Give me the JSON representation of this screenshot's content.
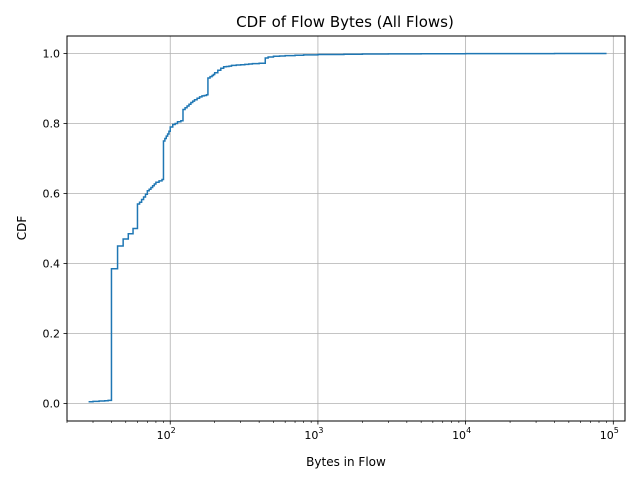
{
  "chart_data": {
    "type": "line",
    "title": "CDF of Flow Bytes (All Flows)",
    "xlabel": "Bytes in Flow",
    "ylabel": "CDF",
    "x_scale": "log",
    "xlim": [
      20,
      120000
    ],
    "ylim": [
      -0.05,
      1.05
    ],
    "x_ticks": [
      {
        "base": "10",
        "exp": "2",
        "value": 100
      },
      {
        "base": "10",
        "exp": "3",
        "value": 1000
      },
      {
        "base": "10",
        "exp": "4",
        "value": 10000
      },
      {
        "base": "10",
        "exp": "5",
        "value": 100000
      }
    ],
    "y_ticks": [
      "0.0",
      "0.2",
      "0.4",
      "0.6",
      "0.8",
      "1.0"
    ],
    "grid": true,
    "color": "#1f77b4",
    "series": [
      {
        "x": [
          28,
          30,
          33,
          36,
          38,
          40,
          40,
          44,
          44,
          48,
          48,
          52,
          52,
          56,
          56,
          60,
          60,
          62,
          64,
          66,
          68,
          70,
          72,
          74,
          76,
          78,
          80,
          84,
          88,
          90,
          90,
          92,
          94,
          96,
          98,
          100,
          104,
          108,
          112,
          118,
          120,
          122,
          126,
          130,
          134,
          138,
          142,
          146,
          152,
          158,
          164,
          170,
          176,
          180,
          180,
          186,
          192,
          196,
          200,
          210,
          220,
          230,
          240,
          250,
          260,
          280,
          300,
          320,
          340,
          360,
          400,
          440,
          440,
          460,
          500,
          550,
          600,
          700,
          800,
          1000,
          1500,
          2000,
          3000,
          5000,
          10000,
          20000,
          40000,
          60000,
          90000
        ],
        "y": [
          0.005,
          0.006,
          0.007,
          0.008,
          0.009,
          0.01,
          0.385,
          0.385,
          0.45,
          0.45,
          0.47,
          0.47,
          0.485,
          0.485,
          0.5,
          0.5,
          0.57,
          0.575,
          0.583,
          0.59,
          0.598,
          0.608,
          0.612,
          0.617,
          0.622,
          0.627,
          0.632,
          0.636,
          0.64,
          0.64,
          0.75,
          0.757,
          0.764,
          0.77,
          0.778,
          0.79,
          0.797,
          0.8,
          0.805,
          0.808,
          0.808,
          0.84,
          0.845,
          0.85,
          0.855,
          0.86,
          0.864,
          0.868,
          0.872,
          0.876,
          0.879,
          0.88,
          0.882,
          0.882,
          0.93,
          0.934,
          0.937,
          0.94,
          0.945,
          0.952,
          0.958,
          0.962,
          0.963,
          0.964,
          0.966,
          0.967,
          0.968,
          0.969,
          0.97,
          0.971,
          0.972,
          0.975,
          0.987,
          0.99,
          0.992,
          0.993,
          0.994,
          0.995,
          0.996,
          0.997,
          0.998,
          0.9985,
          0.999,
          0.9993,
          0.9996,
          0.9998,
          0.9999,
          1.0,
          1.0
        ]
      }
    ]
  }
}
